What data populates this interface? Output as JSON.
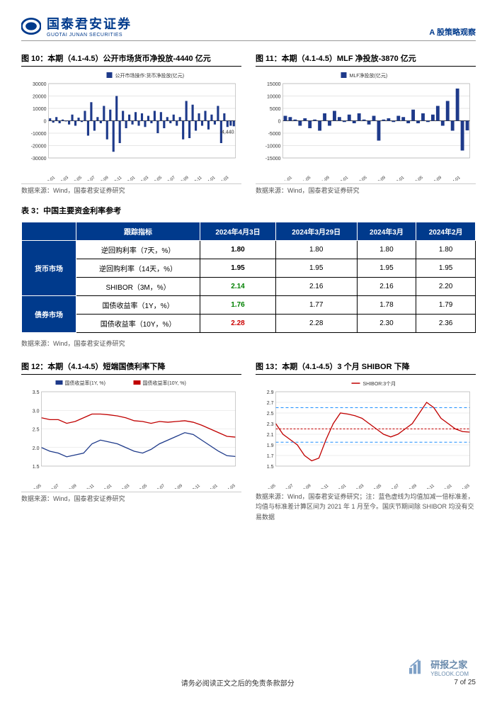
{
  "header": {
    "logo_cn": "国泰君安证券",
    "logo_en": "GUOTAI JUNAN SECURITIES",
    "right": "A 股策略观察"
  },
  "chart10": {
    "title": "图 10：本期（4.1-4.5）公开市场货币净投放-4440 亿元",
    "legend": "公开市场操作:货币净投放(亿元)",
    "source": "数据来源：Wind，国泰君安证券研究",
    "type": "bar",
    "ylim": [
      -30000,
      30000
    ],
    "yticks": [
      -30000,
      -20000,
      -10000,
      0,
      10000,
      20000,
      30000
    ],
    "xlabels": [
      "2022-01",
      "2022-03",
      "2022-05",
      "2022-07",
      "2022-09",
      "2022-11",
      "2023-01",
      "2023-03",
      "2023-05",
      "2023-07",
      "2023-09",
      "2023-11",
      "2024-01",
      "2024-03"
    ],
    "values": [
      2000,
      -1500,
      3000,
      -2000,
      1000,
      -500,
      -3000,
      5000,
      -4000,
      2500,
      -1000,
      8000,
      -12000,
      15000,
      -8000,
      3000,
      -2000,
      12000,
      -15000,
      9000,
      -25000,
      20000,
      -18000,
      8000,
      -6000,
      5000,
      -3000,
      7000,
      -4000,
      6000,
      -5000,
      4000,
      -2000,
      8000,
      -10000,
      7000,
      -6000,
      3000,
      -2000,
      5000,
      -4000,
      3000,
      -15000,
      16000,
      -14000,
      13000,
      -8000,
      6000,
      -4000,
      8000,
      -7000,
      5000,
      -3000,
      12000,
      -18000,
      6000,
      -5000,
      -4000,
      -4440
    ],
    "bar_color": "#1e3a8a",
    "annotation": "-4,440",
    "background": "#ffffff",
    "grid_color": "#cccccc",
    "axis_color": "#000000",
    "label_fontsize": 8
  },
  "chart11": {
    "title": "图 11：本期（4.1-4.5）MLF 净投放-3870 亿元",
    "legend": "MLF净投放(亿元)",
    "source": "数据来源：Wind，国泰君安证券研究",
    "type": "bar",
    "ylim": [
      -15000,
      15000
    ],
    "yticks": [
      -15000,
      -10000,
      -5000,
      0,
      5000,
      10000,
      15000
    ],
    "xlabels": [
      "2021-01",
      "2021-05",
      "2021-09",
      "2022-01",
      "2022-05",
      "2022-09",
      "2023-01",
      "2023-05",
      "2023-09",
      "2024-01"
    ],
    "values": [
      2000,
      1500,
      500,
      -2000,
      1000,
      -3000,
      500,
      -4000,
      3000,
      -2000,
      4000,
      1500,
      -500,
      2500,
      -1000,
      3000,
      500,
      -1500,
      2000,
      -8000,
      500,
      1000,
      -500,
      2000,
      1500,
      -1000,
      4500,
      -1000,
      3000,
      -500,
      2500,
      6000,
      -2000,
      8000,
      -4000,
      13000,
      -12000,
      -3870
    ],
    "bar_color": "#1e3a8a",
    "background": "#ffffff",
    "grid_color": "#cccccc",
    "axis_color": "#000000",
    "label_fontsize": 8
  },
  "table": {
    "title": "表 3：中国主要资金利率参考",
    "source": "数据来源：Wind，国泰君安证券研究",
    "headers": [
      "跟踪指标",
      "2024年4月3日",
      "2024年3月29日",
      "2024年3月",
      "2024年2月"
    ],
    "groups": [
      {
        "name": "货币市场",
        "rows": [
          {
            "label": "逆回购利率（7天，%）",
            "v1": "1.80",
            "v1c": "bold",
            "v2": "1.80",
            "v3": "1.80",
            "v4": "1.80"
          },
          {
            "label": "逆回购利率（14天，%）",
            "v1": "1.95",
            "v1c": "bold",
            "v2": "1.95",
            "v3": "1.95",
            "v4": "1.95"
          },
          {
            "label": "SHIBOR（3M，%）",
            "v1": "2.14",
            "v1c": "green",
            "v2": "2.16",
            "v3": "2.16",
            "v4": "2.20"
          }
        ]
      },
      {
        "name": "债券市场",
        "rows": [
          {
            "label": "国债收益率（1Y，%）",
            "v1": "1.76",
            "v1c": "green",
            "v2": "1.77",
            "v3": "1.78",
            "v4": "1.79"
          },
          {
            "label": "国债收益率（10Y，%）",
            "v1": "2.28",
            "v1c": "red",
            "v2": "2.28",
            "v3": "2.30",
            "v4": "2.36"
          }
        ]
      }
    ]
  },
  "chart12": {
    "title": "图 12：本期（4.1-4.5）短端国债利率下降",
    "legend1": "国债收益率(1Y, %)",
    "legend2": "国债收益率(10Y, %)",
    "source": "数据来源：Wind，国泰君安证券研究",
    "type": "line",
    "ylim": [
      1.5,
      3.5
    ],
    "yticks": [
      1.5,
      2.0,
      2.5,
      3.0,
      3.5
    ],
    "xlabels": [
      "2022-05",
      "2022-07",
      "2022-09",
      "2022-11",
      "2023-01",
      "2023-03",
      "2023-05",
      "2023-07",
      "2023-09",
      "2023-11",
      "2024-01",
      "2024-03"
    ],
    "series1_color": "#1e3a8a",
    "series2_color": "#c00000",
    "series1": [
      2.0,
      1.9,
      1.85,
      1.75,
      1.8,
      1.85,
      2.1,
      2.2,
      2.15,
      2.1,
      2.0,
      1.9,
      1.85,
      1.95,
      2.1,
      2.2,
      2.3,
      2.4,
      2.35,
      2.2,
      2.05,
      1.9,
      1.78,
      1.76
    ],
    "series2": [
      2.8,
      2.75,
      2.75,
      2.65,
      2.7,
      2.8,
      2.9,
      2.9,
      2.88,
      2.85,
      2.8,
      2.72,
      2.7,
      2.65,
      2.7,
      2.68,
      2.7,
      2.72,
      2.68,
      2.6,
      2.5,
      2.4,
      2.3,
      2.28
    ],
    "background": "#ffffff",
    "grid_color": "#cccccc"
  },
  "chart13": {
    "title": "图 13：本期（4.1-4.5）3 个月 SHIBOR 下降",
    "legend": "SHIBOR:3个月",
    "source": "数据来源：Wind，国泰君安证券研究；注：蓝色虚线为均值加减一倍标准差，均值与标准差计算区间为 2021 年 1 月至今。国庆节期间除 SHIBOR 均没有交易数据",
    "type": "line",
    "ylim": [
      1.5,
      2.9
    ],
    "yticks": [
      1.5,
      1.7,
      1.9,
      2.1,
      2.3,
      2.5,
      2.7,
      2.9
    ],
    "xlabels": [
      "2022-05",
      "2022-07",
      "2022-09",
      "2022-11",
      "2023-01",
      "2023-03",
      "2023-05",
      "2023-07",
      "2023-09",
      "2023-11",
      "2024-01",
      "2024-03"
    ],
    "series_color": "#c00000",
    "series": [
      2.3,
      2.1,
      2.0,
      1.9,
      1.7,
      1.6,
      1.65,
      2.0,
      2.3,
      2.5,
      2.48,
      2.45,
      2.4,
      2.3,
      2.2,
      2.1,
      2.05,
      2.1,
      2.2,
      2.3,
      2.5,
      2.7,
      2.6,
      2.4,
      2.3,
      2.2,
      2.15,
      2.14
    ],
    "mean": 2.2,
    "upper": 2.6,
    "lower": 1.95,
    "mean_color": "#c00000",
    "band_color": "#1e90ff",
    "background": "#ffffff"
  },
  "footer": {
    "center": "请务必阅读正文之后的免责条款部分",
    "right": "7 of 25"
  },
  "watermark": {
    "cn": "研报之家",
    "en": "YBLOOK.COM"
  }
}
